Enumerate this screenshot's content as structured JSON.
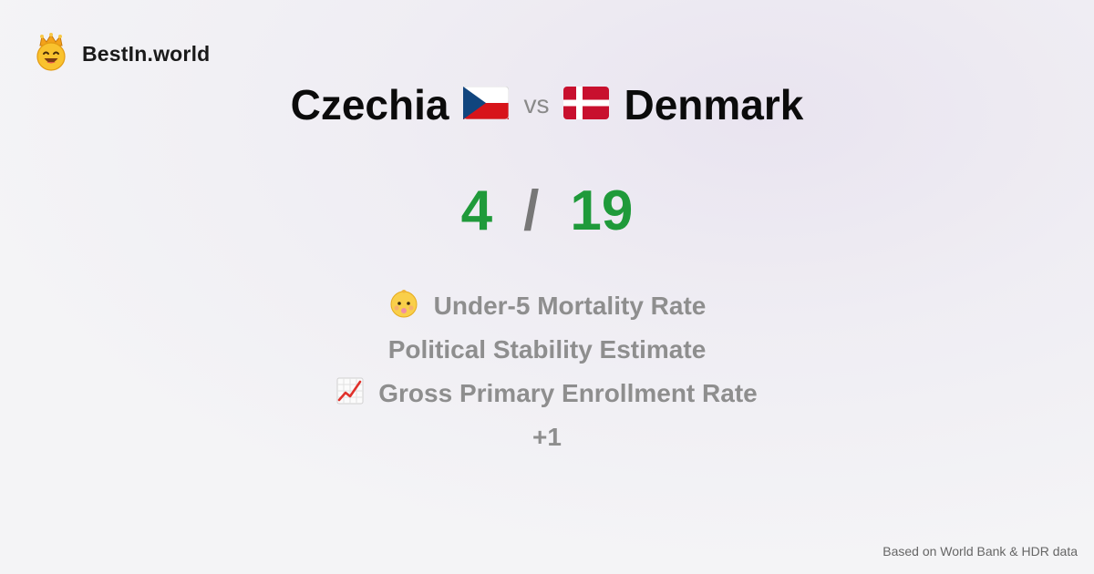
{
  "brand": {
    "name": "BestIn.world",
    "icon": "crowned-smiley-icon"
  },
  "comparison": {
    "left_country": "Czechia",
    "left_flag_icon": "czechia-flag-icon",
    "vs": "vs",
    "right_country": "Denmark",
    "right_flag_icon": "denmark-flag-icon"
  },
  "score": {
    "left": "4",
    "separator": "/",
    "right": "19",
    "color": "#1f9a3a"
  },
  "metrics": [
    {
      "label": "Under-5 Mortality Rate",
      "icon": "baby-icon"
    },
    {
      "label": "Political Stability Estimate",
      "icon": ""
    },
    {
      "label": "Gross Primary Enrollment Rate",
      "icon": "chart-increasing-icon"
    },
    {
      "label": "+1",
      "icon": ""
    }
  ],
  "footer": {
    "source": "Based on World Bank & HDR data"
  }
}
